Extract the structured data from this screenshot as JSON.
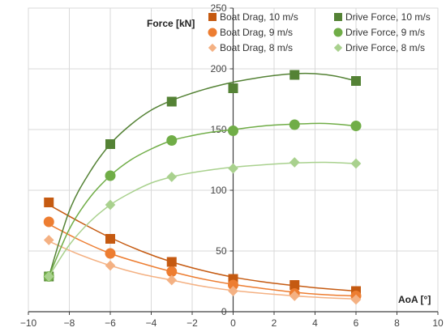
{
  "chart_data": {
    "type": "scatter",
    "title": "",
    "xlabel": "AoA [°]",
    "ylabel": "Force [kN]",
    "xlim": [
      -10,
      10
    ],
    "ylim": [
      0,
      250
    ],
    "x_ticks": [
      -10,
      -8,
      -6,
      -4,
      -2,
      0,
      2,
      4,
      6,
      8,
      10
    ],
    "y_ticks": [
      0,
      50,
      100,
      150,
      200,
      250
    ],
    "grid": true,
    "legend_position": "top-right",
    "series": [
      {
        "name": "Boat Drag, 10 m/s",
        "marker": "square",
        "color": "#c55a11",
        "points": [
          [
            -9,
            90
          ],
          [
            -6,
            60
          ],
          [
            -3,
            41
          ],
          [
            0,
            27
          ],
          [
            3,
            22
          ],
          [
            6,
            17
          ]
        ],
        "curve": [
          [
            -9,
            88
          ],
          [
            -7.5,
            74
          ],
          [
            -6,
            61
          ],
          [
            -4.5,
            50
          ],
          [
            -3,
            41
          ],
          [
            -1.5,
            34
          ],
          [
            0,
            28.5
          ],
          [
            1.5,
            24.5
          ],
          [
            3,
            21.5
          ],
          [
            4.5,
            19
          ],
          [
            6,
            17
          ]
        ]
      },
      {
        "name": "Boat Drag, 9 m/s",
        "marker": "circle",
        "color": "#ed7d31",
        "points": [
          [
            -9,
            74
          ],
          [
            -6,
            48
          ],
          [
            -3,
            33
          ],
          [
            0,
            22
          ],
          [
            3,
            15
          ],
          [
            6,
            13
          ]
        ],
        "curve": [
          [
            -9,
            72
          ],
          [
            -7.5,
            59
          ],
          [
            -6,
            48
          ],
          [
            -4.5,
            40
          ],
          [
            -3,
            33
          ],
          [
            -1.5,
            27
          ],
          [
            0,
            22.5
          ],
          [
            1.5,
            19
          ],
          [
            3,
            16
          ],
          [
            4.5,
            14
          ],
          [
            6,
            13
          ]
        ]
      },
      {
        "name": "Boat Drag, 8 m/s",
        "marker": "diamond",
        "color": "#f4b183",
        "points": [
          [
            -9,
            59
          ],
          [
            -6,
            38
          ],
          [
            -3,
            26
          ],
          [
            0,
            17
          ],
          [
            3,
            13
          ],
          [
            6,
            10
          ]
        ],
        "curve": [
          [
            -9,
            58
          ],
          [
            -7.5,
            47
          ],
          [
            -6,
            38
          ],
          [
            -4.5,
            31
          ],
          [
            -3,
            26
          ],
          [
            -1.5,
            21
          ],
          [
            0,
            17.5
          ],
          [
            1.5,
            15
          ],
          [
            3,
            13
          ],
          [
            4.5,
            11.5
          ],
          [
            6,
            10.5
          ]
        ]
      },
      {
        "name": "Drive Force, 10 m/s",
        "marker": "square",
        "color": "#548235",
        "points": [
          [
            -9,
            29
          ],
          [
            -6,
            138
          ],
          [
            -3,
            173
          ],
          [
            0,
            184
          ],
          [
            3,
            195
          ],
          [
            6,
            190
          ]
        ],
        "curve": [
          [
            -9,
            29
          ],
          [
            -8,
            83
          ],
          [
            -7,
            115
          ],
          [
            -6,
            138
          ],
          [
            -5,
            154
          ],
          [
            -4,
            166
          ],
          [
            -3,
            174
          ],
          [
            -2,
            180
          ],
          [
            -1,
            185
          ],
          [
            0,
            189
          ],
          [
            1,
            192
          ],
          [
            2,
            194.5
          ],
          [
            3,
            196
          ],
          [
            4,
            196
          ],
          [
            5,
            194
          ],
          [
            6,
            190
          ]
        ]
      },
      {
        "name": "Drive Force, 9 m/s",
        "marker": "circle",
        "color": "#70ad47",
        "points": [
          [
            -9,
            29
          ],
          [
            -6,
            112
          ],
          [
            -3,
            141
          ],
          [
            0,
            149
          ],
          [
            3,
            154
          ],
          [
            6,
            153
          ]
        ],
        "curve": [
          [
            -9,
            29
          ],
          [
            -8,
            68
          ],
          [
            -7,
            94
          ],
          [
            -6,
            112
          ],
          [
            -5,
            125
          ],
          [
            -4,
            134
          ],
          [
            -3,
            141
          ],
          [
            -2,
            145
          ],
          [
            -1,
            148
          ],
          [
            0,
            150
          ],
          [
            1.5,
            153
          ],
          [
            3,
            154.5
          ],
          [
            4.5,
            155
          ],
          [
            6,
            153
          ]
        ]
      },
      {
        "name": "Drive Force, 8 m/s",
        "marker": "diamond",
        "color": "#a9d18e",
        "points": [
          [
            -9,
            29
          ],
          [
            -6,
            88
          ],
          [
            -3,
            111
          ],
          [
            0,
            118
          ],
          [
            3,
            123
          ],
          [
            6,
            122
          ]
        ],
        "curve": [
          [
            -9,
            29
          ],
          [
            -8,
            55
          ],
          [
            -7,
            74
          ],
          [
            -6,
            88
          ],
          [
            -5,
            98
          ],
          [
            -4,
            106
          ],
          [
            -3,
            111
          ],
          [
            -2,
            114.5
          ],
          [
            -1,
            117
          ],
          [
            0,
            119
          ],
          [
            1.5,
            121
          ],
          [
            3,
            122.5
          ],
          [
            4.5,
            123
          ],
          [
            6,
            122
          ]
        ]
      }
    ]
  }
}
